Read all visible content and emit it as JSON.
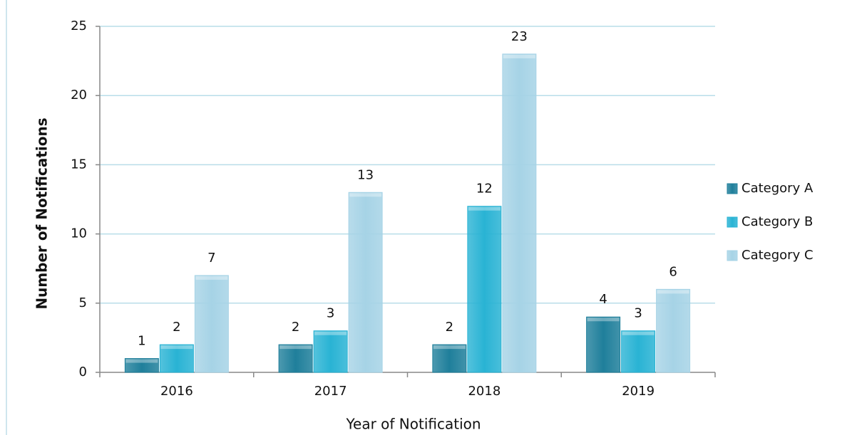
{
  "chart_data": {
    "type": "bar",
    "x_label": "Year of Notification",
    "y_label": "Number of Notifications",
    "categories": [
      "2016",
      "2017",
      "2018",
      "2019"
    ],
    "series": [
      {
        "name": "Category A",
        "color": "#1f7f9b",
        "values": [
          1,
          2,
          2,
          4
        ]
      },
      {
        "name": "Category B",
        "color": "#29b3d4",
        "values": [
          2,
          3,
          12,
          3
        ]
      },
      {
        "name": "Category C",
        "color": "#a6d3e6",
        "values": [
          7,
          13,
          23,
          6
        ]
      }
    ],
    "ylim": [
      0,
      25
    ],
    "yticks": [
      0,
      5,
      10,
      15,
      20,
      25
    ],
    "grid": true,
    "legend": "right",
    "data_labels": true
  }
}
